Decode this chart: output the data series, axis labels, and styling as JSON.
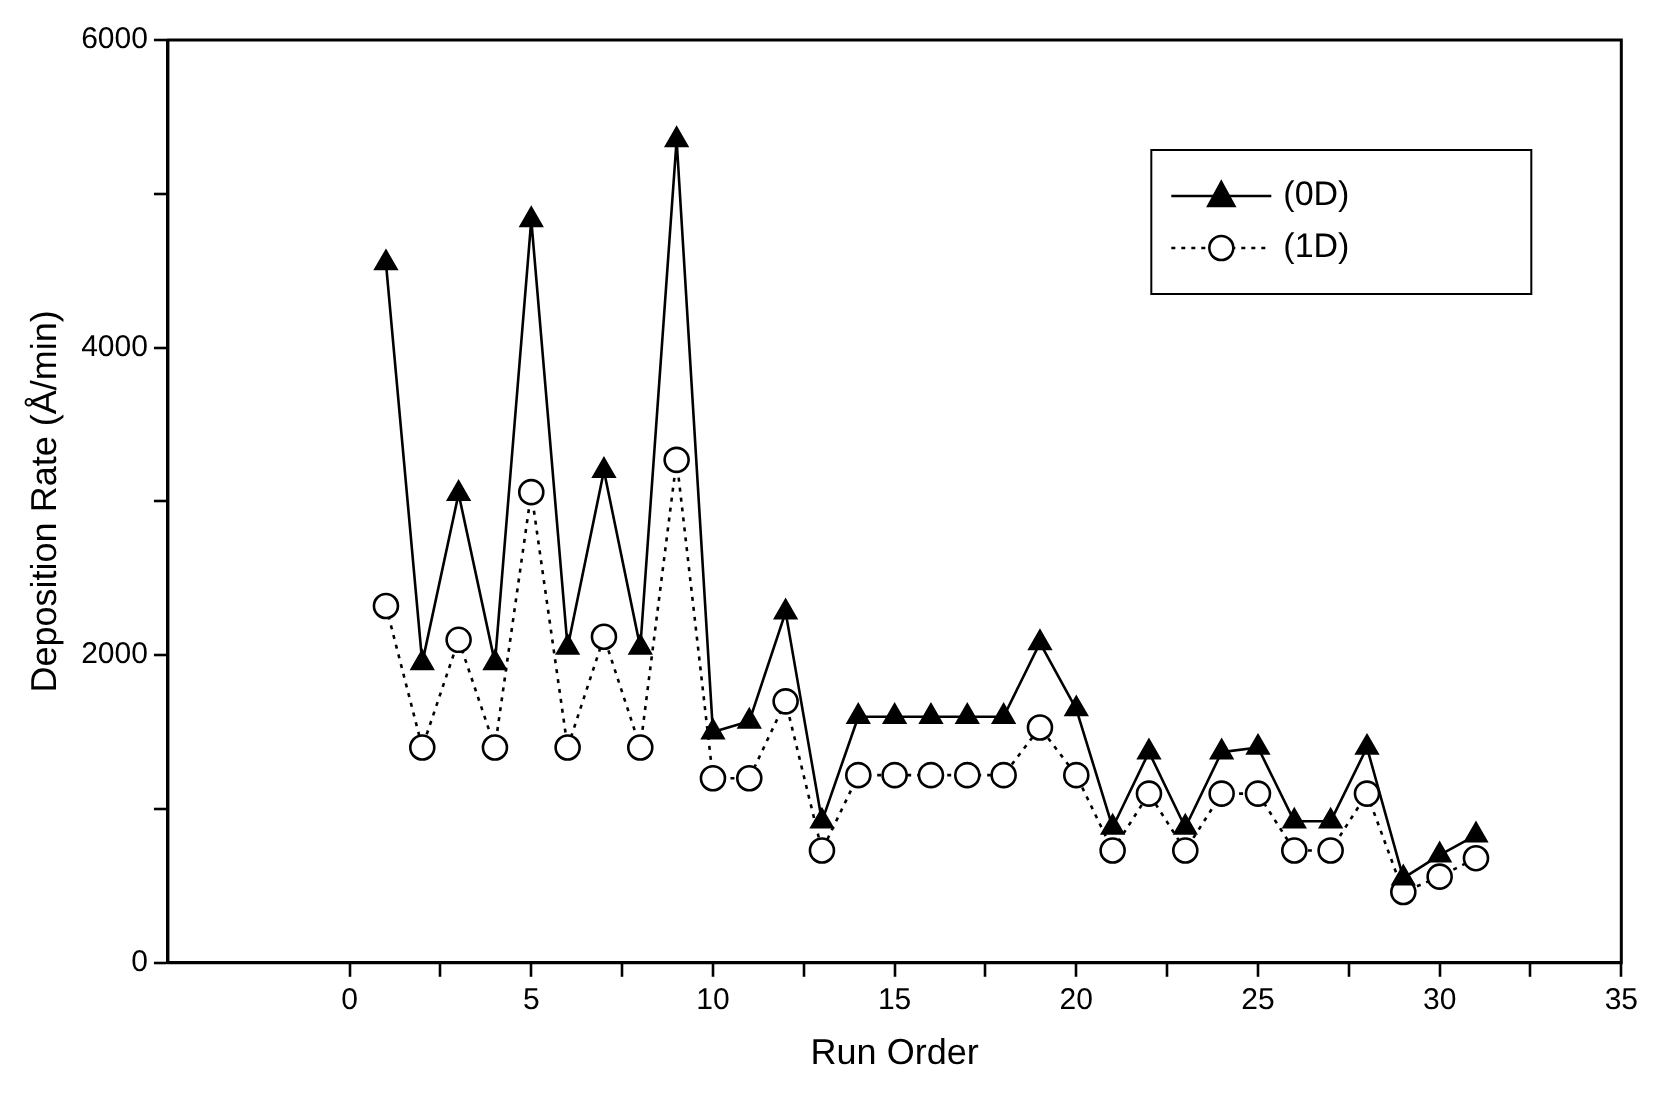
{
  "chart_data": {
    "type": "line",
    "xlabel": "Run Order",
    "ylabel": "Deposition Rate (Å/min)",
    "x": [
      1,
      2,
      3,
      4,
      5,
      6,
      7,
      8,
      9,
      10,
      11,
      12,
      13,
      14,
      15,
      16,
      17,
      18,
      19,
      20,
      21,
      22,
      23,
      24,
      25,
      26,
      27,
      28,
      29,
      30,
      31
    ],
    "series": [
      {
        "name": "(0D)",
        "color": "#000000",
        "marker": "triangle",
        "line_style": "solid",
        "values": [
          4550,
          1950,
          3050,
          1950,
          4830,
          2050,
          3200,
          2050,
          5350,
          1500,
          1570,
          2280,
          920,
          1600,
          1600,
          1600,
          1600,
          1600,
          2080,
          1650,
          880,
          1370,
          880,
          1370,
          1400,
          920,
          920,
          1400,
          550,
          700,
          830
        ]
      },
      {
        "name": "(1D)",
        "color": "#000000",
        "marker": "circle",
        "line_style": "dotted",
        "values": [
          2320,
          1400,
          2100,
          1400,
          3060,
          1400,
          2120,
          1400,
          3270,
          1200,
          1200,
          1700,
          730,
          1220,
          1220,
          1220,
          1220,
          1220,
          1530,
          1220,
          730,
          1100,
          730,
          1100,
          1100,
          730,
          730,
          1100,
          460,
          560,
          680
        ]
      }
    ],
    "xlim": [
      -5,
      35
    ],
    "xticks": [
      0,
      {
        "value": 2.5,
        "label": null
      },
      5,
      {
        "value": 7.5,
        "label": null
      },
      10,
      {
        "value": 12.5,
        "label": null
      },
      15,
      {
        "value": 17.5,
        "label": null
      },
      20,
      {
        "value": 22.5,
        "label": null
      },
      25,
      {
        "value": 27.5,
        "label": null
      },
      30,
      {
        "value": 32.5,
        "label": null
      },
      35
    ],
    "ylim": [
      0,
      6000
    ],
    "yticks": [
      0,
      {
        "value": 1000,
        "label": null
      },
      2000,
      {
        "value": 3000,
        "label": null
      },
      4000,
      {
        "value": 5000,
        "label": null
      },
      6000
    ],
    "grid": false,
    "legend": "top right"
  }
}
